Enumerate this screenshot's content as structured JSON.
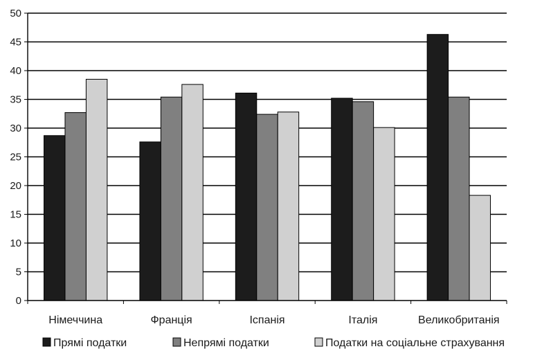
{
  "chart_data": {
    "type": "bar",
    "title": "",
    "xlabel": "",
    "ylabel": "",
    "ylim": [
      0,
      50
    ],
    "yticks": [
      0,
      5,
      10,
      15,
      20,
      25,
      30,
      35,
      40,
      45,
      50
    ],
    "grid": true,
    "legend_position": "bottom",
    "categories": [
      "Німеччина",
      "Франція",
      "Іспанія",
      "Італія",
      "Великобританія"
    ],
    "series": [
      {
        "name": "Прямі податки",
        "color": "#1c1c1c",
        "values": [
          28.7,
          27.6,
          36.1,
          35.2,
          46.3
        ]
      },
      {
        "name": "Непрямі податки",
        "color": "#808080",
        "values": [
          32.7,
          35.4,
          32.4,
          34.6,
          35.4
        ]
      },
      {
        "name": "Податки на соціальне страхування",
        "color": "#d0d0d0",
        "values": [
          38.5,
          37.6,
          32.8,
          30.1,
          18.3
        ]
      }
    ]
  }
}
